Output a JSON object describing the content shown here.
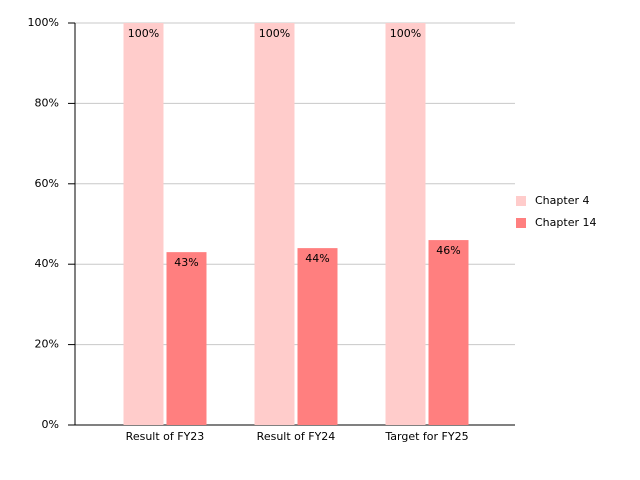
{
  "chart_data": {
    "type": "bar",
    "categories": [
      "Result of FY23",
      "Result of FY24",
      "Target for FY25"
    ],
    "series": [
      {
        "name": "Chapter 4",
        "color": "#ffcccb",
        "values": [
          100,
          100,
          100
        ],
        "value_labels": [
          "100%",
          "100%",
          "100%"
        ]
      },
      {
        "name": "Chapter 14",
        "color": "#ff7f7f",
        "values": [
          43,
          44,
          46
        ],
        "value_labels": [
          "43%",
          "44%",
          "46%"
        ]
      }
    ],
    "ylim": [
      0,
      100
    ],
    "yticks": [
      {
        "value": 0,
        "label": "0%"
      },
      {
        "value": 20,
        "label": "20%"
      },
      {
        "value": 40,
        "label": "40%"
      },
      {
        "value": 60,
        "label": "60%"
      },
      {
        "value": 80,
        "label": "80%"
      },
      {
        "value": 100,
        "label": "100%"
      }
    ],
    "grid": true,
    "legend": "right"
  }
}
